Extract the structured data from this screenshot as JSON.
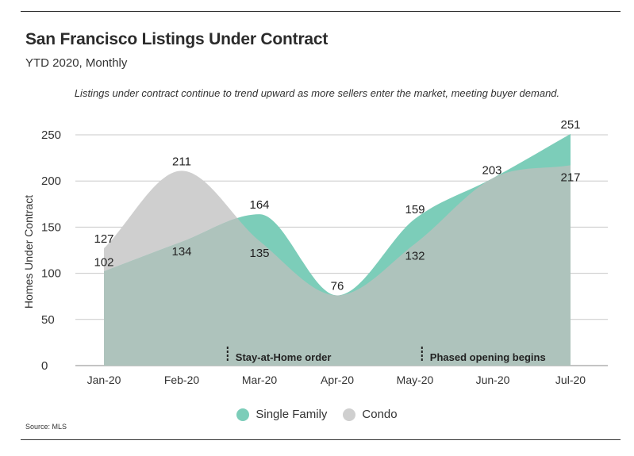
{
  "title": "San Francisco Listings Under Contract",
  "subtitle": "YTD 2020, Monthly",
  "annotation": "Listings under contract continue to trend upward as more sellers enter the market, meeting buyer demand.",
  "source": "Source: MLS",
  "colors": {
    "single_family": "#7ccdb9",
    "condo": "#cfcfcf",
    "overlap": "#aec3bc"
  },
  "chart_data": {
    "type": "area",
    "x": [
      "Jan-20",
      "Feb-20",
      "Mar-20",
      "Apr-20",
      "May-20",
      "Jun-20",
      "Jul-20"
    ],
    "series": [
      {
        "name": "Single Family",
        "values": [
          102,
          134,
          164,
          76,
          159,
          203,
          251
        ]
      },
      {
        "name": "Condo",
        "values": [
          127,
          211,
          135,
          76,
          132,
          203,
          217
        ]
      }
    ],
    "ylabel": "Homes Under Contract",
    "ylim": [
      0,
      250
    ],
    "yticks": [
      0,
      50,
      100,
      150,
      200,
      250
    ],
    "grid": true,
    "legend_position": "bottom-center",
    "events": [
      {
        "label": "Stay-at-Home order",
        "at": "Mar-20",
        "offset_months": -0.4
      },
      {
        "label": "Phased opening begins",
        "at": "May-20",
        "offset_months": 0.1
      }
    ]
  }
}
